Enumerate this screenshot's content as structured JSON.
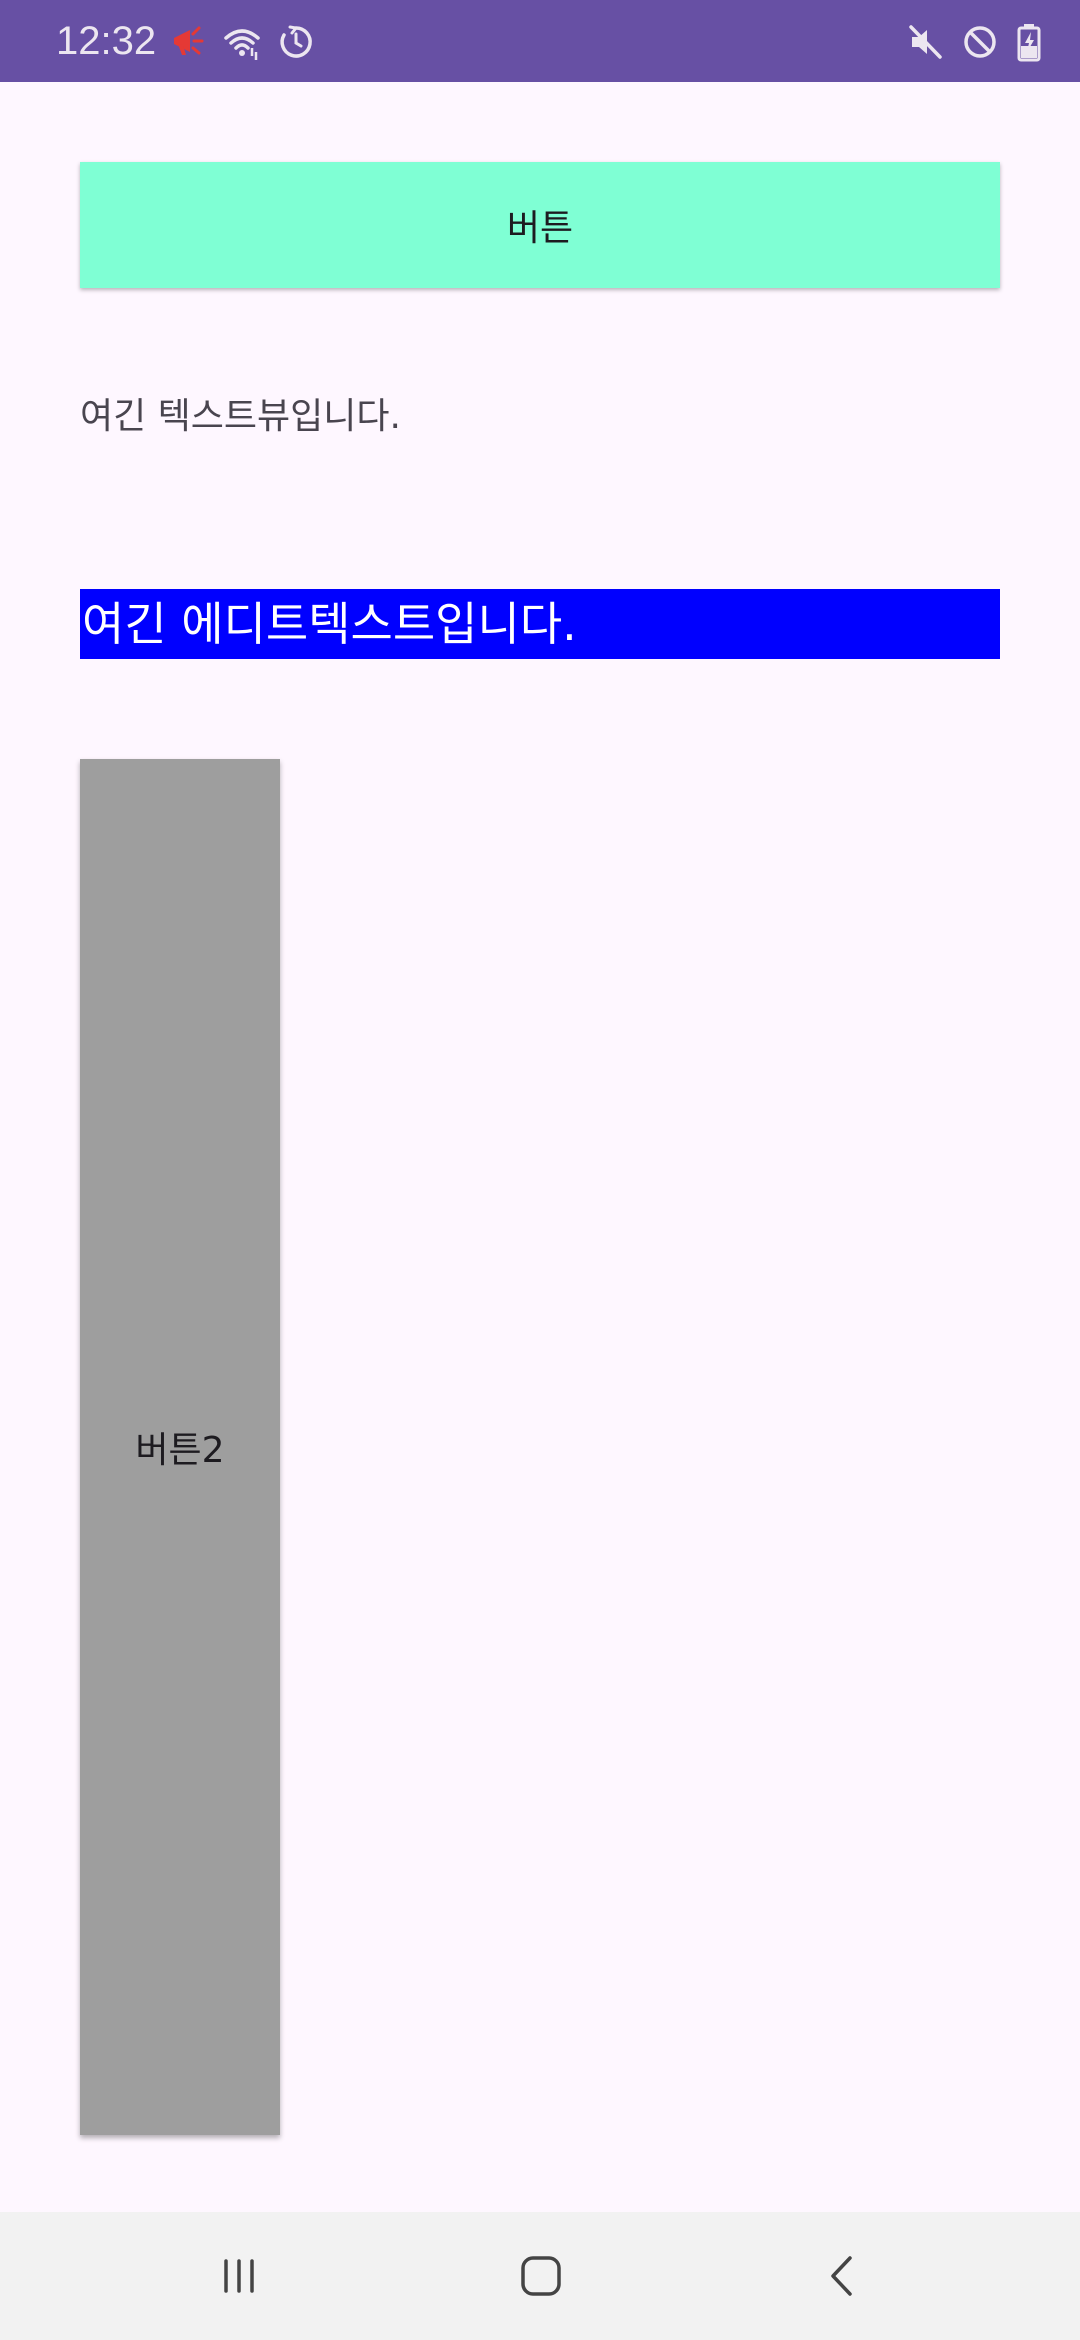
{
  "status_bar": {
    "time": "12:32",
    "left_icons": [
      "megaphone-icon",
      "wifi-icon",
      "timer-icon"
    ],
    "right_icons": [
      "mute-icon",
      "do-not-disturb-icon",
      "battery-charging-icon"
    ],
    "background": "#6750A4"
  },
  "main": {
    "button_1": {
      "label": "버튼",
      "background": "#7FFFD4"
    },
    "text_view": {
      "text": "여긴 텍스트뷰입니다."
    },
    "edit_text": {
      "value": "여긴 에디트텍스트입니다.",
      "background": "#0000FF",
      "text_color": "#FFFFFF"
    },
    "button_2": {
      "label": "버튼2",
      "background": "#9E9E9E"
    }
  },
  "nav_bar": {
    "buttons": [
      "recents-icon",
      "home-icon",
      "back-icon"
    ]
  }
}
